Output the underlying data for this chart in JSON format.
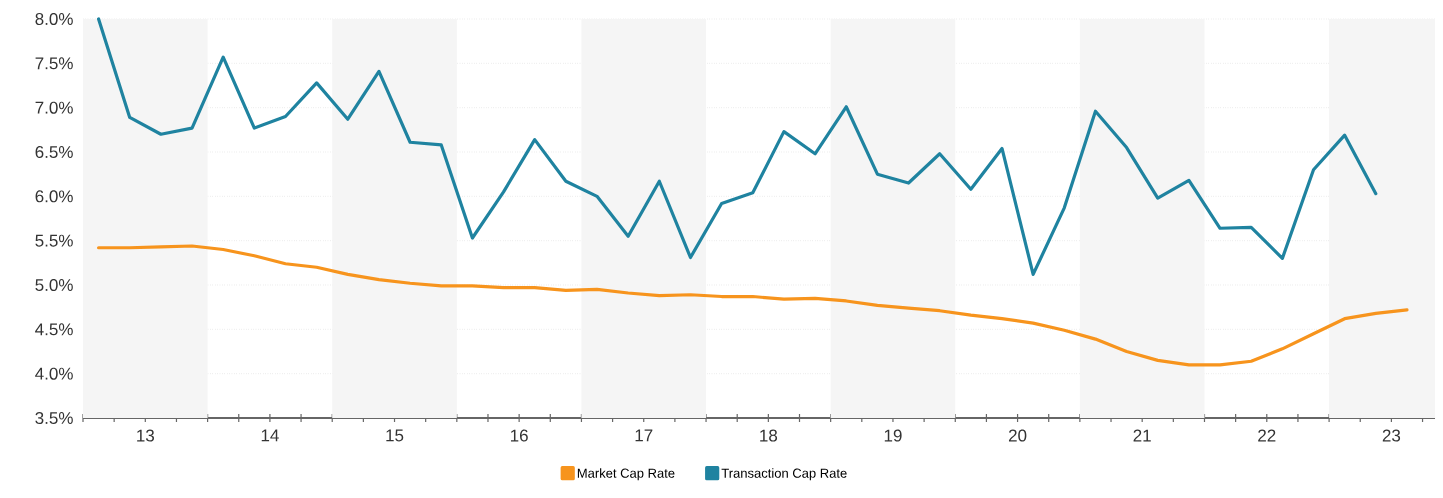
{
  "chart_data": {
    "type": "line",
    "xlim": [
      12.5,
      23.35
    ],
    "ylim": [
      3.5,
      8.0
    ],
    "xticks": [
      {
        "value": 12.5,
        "label": null
      },
      {
        "value": 12.75,
        "label": null
      },
      {
        "value": 13,
        "label": "13"
      },
      {
        "value": 13.25,
        "label": null
      },
      {
        "value": 13.5,
        "label": null
      },
      {
        "value": 13.75,
        "label": null
      },
      {
        "value": 14,
        "label": "14"
      },
      {
        "value": 14.25,
        "label": null
      },
      {
        "value": 14.5,
        "label": null
      },
      {
        "value": 14.75,
        "label": null
      },
      {
        "value": 15,
        "label": "15"
      },
      {
        "value": 15.25,
        "label": null
      },
      {
        "value": 15.5,
        "label": null
      },
      {
        "value": 15.75,
        "label": null
      },
      {
        "value": 16,
        "label": "16"
      },
      {
        "value": 16.25,
        "label": null
      },
      {
        "value": 16.5,
        "label": null
      },
      {
        "value": 16.75,
        "label": null
      },
      {
        "value": 17,
        "label": "17"
      },
      {
        "value": 17.25,
        "label": null
      },
      {
        "value": 17.5,
        "label": null
      },
      {
        "value": 17.75,
        "label": null
      },
      {
        "value": 18,
        "label": "18"
      },
      {
        "value": 18.25,
        "label": null
      },
      {
        "value": 18.5,
        "label": null
      },
      {
        "value": 18.75,
        "label": null
      },
      {
        "value": 19,
        "label": "19"
      },
      {
        "value": 19.25,
        "label": null
      },
      {
        "value": 19.5,
        "label": null
      },
      {
        "value": 19.75,
        "label": null
      },
      {
        "value": 20,
        "label": "20"
      },
      {
        "value": 20.25,
        "label": null
      },
      {
        "value": 20.5,
        "label": null
      },
      {
        "value": 20.75,
        "label": null
      },
      {
        "value": 21,
        "label": "21"
      },
      {
        "value": 21.25,
        "label": null
      },
      {
        "value": 21.5,
        "label": null
      },
      {
        "value": 21.75,
        "label": null
      },
      {
        "value": 22,
        "label": "22"
      },
      {
        "value": 22.25,
        "label": null
      },
      {
        "value": 22.5,
        "label": null
      },
      {
        "value": 22.75,
        "label": null
      },
      {
        "value": 23,
        "label": "23"
      },
      {
        "value": 23.25,
        "label": null
      }
    ],
    "yticks": [
      {
        "value": 3.5,
        "label": "3.5%"
      },
      {
        "value": 4.0,
        "label": "4.0%"
      },
      {
        "value": 4.5,
        "label": "4.5%"
      },
      {
        "value": 5.0,
        "label": "5.0%"
      },
      {
        "value": 5.5,
        "label": "5.5%"
      },
      {
        "value": 6.0,
        "label": "6.0%"
      },
      {
        "value": 6.5,
        "label": "6.5%"
      },
      {
        "value": 7.0,
        "label": "7.0%"
      },
      {
        "value": 7.5,
        "label": "7.5%"
      },
      {
        "value": 8.0,
        "label": "8.0%"
      }
    ],
    "grid": "y",
    "legend": "bottom",
    "bands": [
      {
        "axis": "x",
        "from": 12.5,
        "to": 13.5,
        "color": "#f5f5f5"
      },
      {
        "axis": "x",
        "from": 14.5,
        "to": 15.5,
        "color": "#f5f5f5"
      },
      {
        "axis": "x",
        "from": 16.5,
        "to": 17.5,
        "color": "#f5f5f5"
      },
      {
        "axis": "x",
        "from": 18.5,
        "to": 19.5,
        "color": "#f5f5f5"
      },
      {
        "axis": "x",
        "from": 20.5,
        "to": 21.5,
        "color": "#f5f5f5"
      },
      {
        "axis": "x",
        "from": 22.5,
        "to": 23.35,
        "color": "#f5f5f5"
      }
    ],
    "series": [
      {
        "name": "Market Cap Rate",
        "color": "#f7941d",
        "x": [
          12.625,
          12.875,
          13.125,
          13.375,
          13.625,
          13.875,
          14.125,
          14.375,
          14.625,
          14.875,
          15.125,
          15.375,
          15.625,
          15.875,
          16.125,
          16.375,
          16.625,
          16.875,
          17.125,
          17.375,
          17.625,
          17.875,
          18.125,
          18.375,
          18.625,
          18.875,
          19.125,
          19.375,
          19.625,
          19.875,
          20.125,
          20.375,
          20.625,
          20.875,
          21.125,
          21.375,
          21.625,
          21.875,
          22.125,
          22.375,
          22.625,
          22.875,
          23.125
        ],
        "values": [
          5.42,
          5.42,
          5.43,
          5.44,
          5.4,
          5.33,
          5.24,
          5.2,
          5.12,
          5.06,
          5.02,
          4.99,
          4.99,
          4.97,
          4.97,
          4.94,
          4.95,
          4.91,
          4.88,
          4.89,
          4.87,
          4.87,
          4.84,
          4.85,
          4.82,
          4.77,
          4.74,
          4.71,
          4.66,
          4.62,
          4.57,
          4.49,
          4.39,
          4.25,
          4.15,
          4.1,
          4.1,
          4.14,
          4.28,
          4.45,
          4.62,
          4.68,
          4.72
        ]
      },
      {
        "name": "Transaction Cap Rate",
        "color": "#1f83a0",
        "x": [
          12.625,
          12.875,
          13.125,
          13.375,
          13.625,
          13.875,
          14.125,
          14.375,
          14.625,
          14.875,
          15.125,
          15.375,
          15.625,
          15.875,
          16.125,
          16.375,
          16.625,
          16.875,
          17.125,
          17.375,
          17.625,
          17.875,
          18.125,
          18.375,
          18.625,
          18.875,
          19.125,
          19.375,
          19.625,
          19.875,
          20.125,
          20.375,
          20.625,
          20.875,
          21.125,
          21.375,
          21.625,
          21.875,
          22.125,
          22.375,
          22.625,
          22.875
        ],
        "values": [
          8.0,
          6.89,
          6.7,
          6.77,
          7.57,
          6.77,
          6.9,
          7.28,
          6.87,
          7.41,
          6.61,
          6.58,
          5.53,
          6.05,
          6.64,
          6.17,
          6.0,
          5.55,
          6.17,
          5.31,
          5.92,
          6.04,
          6.73,
          6.48,
          7.01,
          6.25,
          6.15,
          6.48,
          6.08,
          6.54,
          5.12,
          5.87,
          6.96,
          6.55,
          5.98,
          6.18,
          5.64,
          5.65,
          5.3,
          6.3,
          6.69,
          6.03
        ]
      }
    ]
  }
}
